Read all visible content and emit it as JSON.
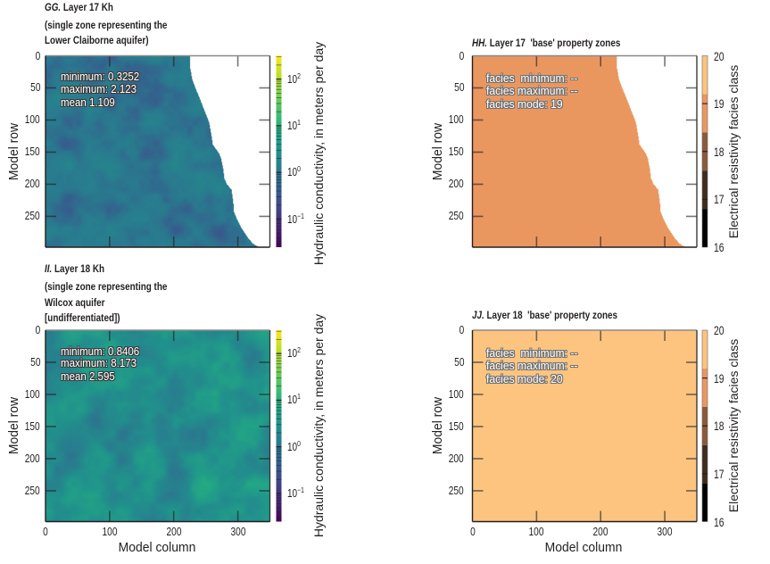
{
  "chart_data": [
    {
      "panel": "GG",
      "type": "heatmap",
      "title_letter": "GG.",
      "title": "Layer 17 Kh",
      "subtitle_lines": [
        "(single zone representing the",
        "Lower Claiborne aquifer)"
      ],
      "xlabel": "",
      "ylabel": "Model row",
      "xlim": [
        0,
        350
      ],
      "ylim": [
        298,
        0
      ],
      "xticks": [
        0,
        100,
        200,
        300
      ],
      "xtick_labels": null,
      "yticks": [
        0,
        50,
        100,
        150,
        200,
        250
      ],
      "ytick_labels": [
        "0",
        "50",
        "100",
        "150",
        "200",
        "250"
      ],
      "statistics": {
        "minimum": 0.3252,
        "maximum": 2.123,
        "mean": 1.109
      },
      "annotation_lines": [
        "minimum: 0.3252",
        "maximum: 2.123",
        "mean 1.109"
      ],
      "inactive_color": "#ffffff",
      "active_max_column_by_row": [
        [
          0,
          224
        ],
        [
          20,
          225
        ],
        [
          36,
          228
        ],
        [
          50,
          233
        ],
        [
          69,
          241
        ],
        [
          85,
          247
        ],
        [
          100,
          253
        ],
        [
          107,
          255
        ],
        [
          125,
          258
        ],
        [
          138,
          260
        ],
        [
          145,
          265
        ],
        [
          152,
          270
        ],
        [
          160,
          273
        ],
        [
          175,
          276
        ],
        [
          191,
          278
        ],
        [
          200,
          282
        ],
        [
          208,
          289
        ],
        [
          215,
          290
        ],
        [
          230,
          292
        ],
        [
          243,
          293
        ],
        [
          255,
          298
        ],
        [
          267,
          304
        ],
        [
          275,
          309
        ],
        [
          285,
          316
        ],
        [
          292,
          322
        ],
        [
          296,
          328
        ],
        [
          298,
          332
        ]
      ],
      "colorbar": {
        "label": "Hydraulic conductivity, in meters per day",
        "scale": "log",
        "colormap": "viridis",
        "range": [
          0.025,
          316
        ],
        "ticks": [
          0.1,
          1,
          10,
          100
        ],
        "tick_labels": [
          {
            "base": "10",
            "exp": "−1"
          },
          {
            "base": "10",
            "exp": "0"
          },
          {
            "base": "10",
            "exp": "1"
          },
          {
            "base": "10",
            "exp": "2"
          }
        ]
      }
    },
    {
      "panel": "HH",
      "type": "heatmap",
      "title_letter": "HH.",
      "title": "Layer 17  'base' property zones",
      "subtitle_lines": [],
      "xlabel": "",
      "ylabel": "Model row",
      "xlim": [
        0,
        350
      ],
      "ylim": [
        298,
        0
      ],
      "xticks": [
        0,
        100,
        200,
        300
      ],
      "xtick_labels": null,
      "yticks": [
        0,
        50,
        100,
        150,
        200,
        250
      ],
      "ytick_labels": [
        "0",
        "50",
        "100",
        "150",
        "200",
        "250"
      ],
      "facies_mode": 19,
      "annotation_lines": [
        "facies  minimum: --",
        "facies maximum: --",
        "facies mode: 19"
      ],
      "inactive_color": "#ffffff",
      "active_max_column_by_row": [
        [
          0,
          224
        ],
        [
          20,
          225
        ],
        [
          36,
          228
        ],
        [
          50,
          233
        ],
        [
          69,
          241
        ],
        [
          85,
          247
        ],
        [
          100,
          253
        ],
        [
          107,
          255
        ],
        [
          125,
          258
        ],
        [
          138,
          260
        ],
        [
          145,
          265
        ],
        [
          152,
          270
        ],
        [
          160,
          273
        ],
        [
          175,
          276
        ],
        [
          191,
          278
        ],
        [
          200,
          282
        ],
        [
          208,
          289
        ],
        [
          215,
          290
        ],
        [
          230,
          292
        ],
        [
          243,
          293
        ],
        [
          255,
          298
        ],
        [
          267,
          304
        ],
        [
          275,
          309
        ],
        [
          285,
          316
        ],
        [
          292,
          322
        ],
        [
          296,
          328
        ],
        [
          298,
          332
        ]
      ],
      "colorbar": {
        "label": "Electrical resistivity facies class",
        "scale": "discrete",
        "range": [
          16,
          20
        ],
        "ticks": [
          16,
          17,
          18,
          19,
          20
        ],
        "tick_labels": [
          "16",
          "17",
          "18",
          "19",
          "20"
        ],
        "classes": [
          {
            "from": 16.0,
            "to": 16.8,
            "color": "#000000"
          },
          {
            "from": 16.8,
            "to": 17.6,
            "color": "#3f2c1e"
          },
          {
            "from": 17.6,
            "to": 18.4,
            "color": "#8b5a3a"
          },
          {
            "from": 18.4,
            "to": 19.2,
            "color": "#ea975f"
          },
          {
            "from": 19.2,
            "to": 20.0,
            "color": "#fdc47f"
          }
        ]
      }
    },
    {
      "panel": "II",
      "type": "heatmap",
      "title_letter": "II.",
      "title": "Layer 18 Kh",
      "subtitle_lines": [
        "(single zone representing the",
        "Wilcox aquifer",
        "[undifferentiated])"
      ],
      "xlabel": "Model column",
      "ylabel": "Model row",
      "xlim": [
        0,
        350
      ],
      "ylim": [
        298,
        0
      ],
      "xticks": [
        0,
        100,
        200,
        300
      ],
      "xtick_labels": [
        "0",
        "100",
        "200",
        "300"
      ],
      "yticks": [
        0,
        50,
        100,
        150,
        200,
        250
      ],
      "ytick_labels": [
        "0",
        "50",
        "100",
        "150",
        "200",
        "250"
      ],
      "statistics": {
        "minimum": 0.8406,
        "maximum": 8.173,
        "mean": 2.595
      },
      "annotation_lines": [
        "minimum: 0.8406",
        "maximum: 8.173",
        "mean 2.595"
      ],
      "inactive_color": "#ffffff",
      "active_max_column_by_row": null,
      "colorbar": {
        "label": "Hydraulic conductivity, in meters per day",
        "scale": "log",
        "colormap": "viridis",
        "range": [
          0.025,
          316
        ],
        "ticks": [
          0.1,
          1,
          10,
          100
        ],
        "tick_labels": [
          {
            "base": "10",
            "exp": "−1"
          },
          {
            "base": "10",
            "exp": "0"
          },
          {
            "base": "10",
            "exp": "1"
          },
          {
            "base": "10",
            "exp": "2"
          }
        ]
      }
    },
    {
      "panel": "JJ",
      "type": "heatmap",
      "title_letter": "JJ.",
      "title": "Layer 18  'base' property zones",
      "subtitle_lines": [],
      "xlabel": "Model column",
      "ylabel": "Model row",
      "xlim": [
        0,
        350
      ],
      "ylim": [
        298,
        0
      ],
      "xticks": [
        0,
        100,
        200,
        300
      ],
      "xtick_labels": [
        "0",
        "100",
        "200",
        "300"
      ],
      "yticks": [
        0,
        50,
        100,
        150,
        200,
        250
      ],
      "ytick_labels": [
        "0",
        "50",
        "100",
        "150",
        "200",
        "250"
      ],
      "facies_mode": 20,
      "annotation_lines": [
        "facies  minimum: --",
        "facies maximum: --",
        "facies mode: 20"
      ],
      "inactive_color": "#ffffff",
      "active_max_column_by_row": null,
      "colorbar": {
        "label": "Electrical resistivity facies class",
        "scale": "discrete",
        "range": [
          16,
          20
        ],
        "ticks": [
          16,
          17,
          18,
          19,
          20
        ],
        "tick_labels": [
          "16",
          "17",
          "18",
          "19",
          "20"
        ],
        "classes": [
          {
            "from": 16.0,
            "to": 16.8,
            "color": "#000000"
          },
          {
            "from": 16.8,
            "to": 17.6,
            "color": "#3f2c1e"
          },
          {
            "from": 17.6,
            "to": 18.4,
            "color": "#8b5a3a"
          },
          {
            "from": 18.4,
            "to": 19.2,
            "color": "#ea975f"
          },
          {
            "from": 19.2,
            "to": 20.0,
            "color": "#fdc47f"
          }
        ]
      }
    }
  ]
}
